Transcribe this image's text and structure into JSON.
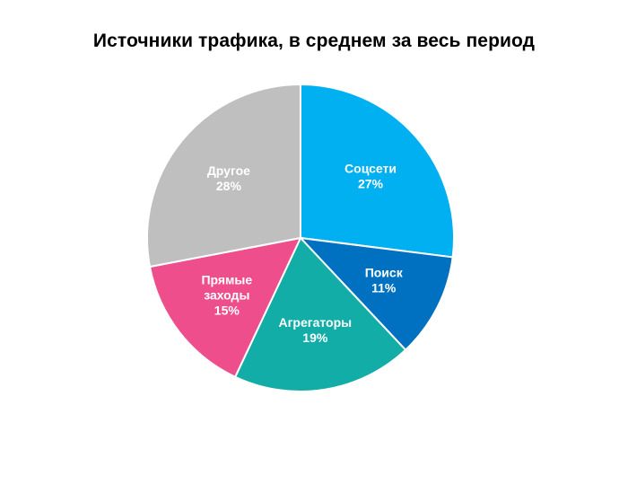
{
  "chart_data": {
    "type": "pie",
    "title": "Источники трафика, в среднем за весь период",
    "slices": [
      {
        "label_lines": [
          "Соцсети"
        ],
        "value": 27,
        "value_label": "27%",
        "color": "#00B0F0"
      },
      {
        "label_lines": [
          "Поиск"
        ],
        "value": 11,
        "value_label": "11%",
        "color": "#0070C0"
      },
      {
        "label_lines": [
          "Агрегаторы"
        ],
        "value": 19,
        "value_label": "19%",
        "color": "#12ADA7"
      },
      {
        "label_lines": [
          "Прямые",
          "заходы"
        ],
        "value": 15,
        "value_label": "15%",
        "color": "#EE4F8C"
      },
      {
        "label_lines": [
          "Другое"
        ],
        "value": 28,
        "value_label": "28%",
        "color": "#BFBFBF"
      }
    ],
    "legend": "none",
    "start_angle": "12 o'clock",
    "direction": "clockwise",
    "label_color": "#ffffff"
  }
}
